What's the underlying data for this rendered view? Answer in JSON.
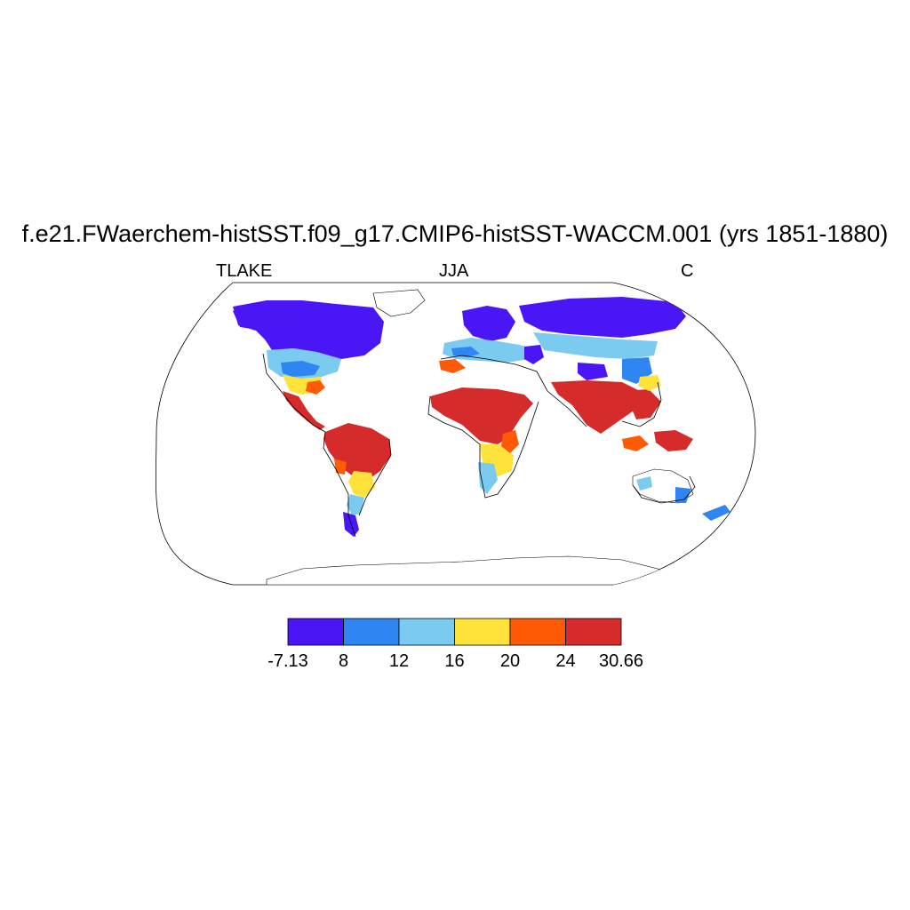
{
  "title": "f.e21.FWaerchem-histSST.f09_g17.CMIP6-histSST-WACCM.001 (yrs 1851-1880)",
  "subtitle": {
    "left": "TLAKE",
    "center": "JJA",
    "right": "C"
  },
  "colorbar": {
    "colors": [
      "#4a16f6",
      "#2f86f3",
      "#7bcaf0",
      "#ffe23a",
      "#ff5a06",
      "#d62b2b"
    ],
    "labels": [
      "-7.13",
      "8",
      "12",
      "16",
      "20",
      "24",
      "30.66"
    ]
  }
}
